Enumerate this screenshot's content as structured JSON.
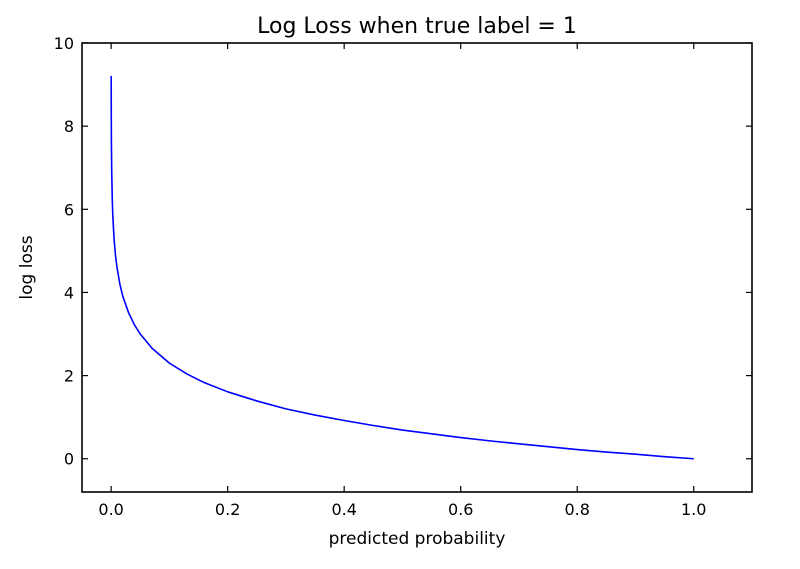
{
  "chart_data": {
    "type": "line",
    "title": "Log Loss when true label = 1",
    "xlabel": "predicted probability",
    "ylabel": "log loss",
    "xlim": [
      -0.05,
      1.1
    ],
    "ylim": [
      -0.8,
      10
    ],
    "x_ticks": [
      0.0,
      0.2,
      0.4,
      0.6,
      0.8,
      1.0
    ],
    "x_tick_labels": [
      "0.0",
      "0.2",
      "0.4",
      "0.6",
      "0.8",
      "1.0"
    ],
    "y_ticks": [
      0,
      2,
      4,
      6,
      8,
      10
    ],
    "y_tick_labels": [
      "0",
      "2",
      "4",
      "6",
      "8",
      "10"
    ],
    "grid": false,
    "series": [
      {
        "color": "#0000ff",
        "x": [
          0.0001,
          0.0003,
          0.0005,
          0.001,
          0.002,
          0.003,
          0.005,
          0.0075,
          0.01,
          0.015,
          0.02,
          0.03,
          0.04,
          0.05,
          0.07,
          0.1,
          0.13,
          0.16,
          0.2,
          0.25,
          0.3,
          0.35,
          0.4,
          0.45,
          0.5,
          0.55,
          0.6,
          0.65,
          0.7,
          0.75,
          0.8,
          0.85,
          0.9,
          0.95,
          1.0
        ],
        "y": [
          9.21,
          8.11,
          7.6,
          6.91,
          6.21,
          5.81,
          5.3,
          4.89,
          4.61,
          4.2,
          3.91,
          3.51,
          3.22,
          3.0,
          2.66,
          2.3,
          2.04,
          1.83,
          1.61,
          1.39,
          1.2,
          1.05,
          0.92,
          0.8,
          0.69,
          0.6,
          0.51,
          0.43,
          0.36,
          0.29,
          0.22,
          0.16,
          0.11,
          0.05,
          0.0
        ]
      }
    ]
  }
}
